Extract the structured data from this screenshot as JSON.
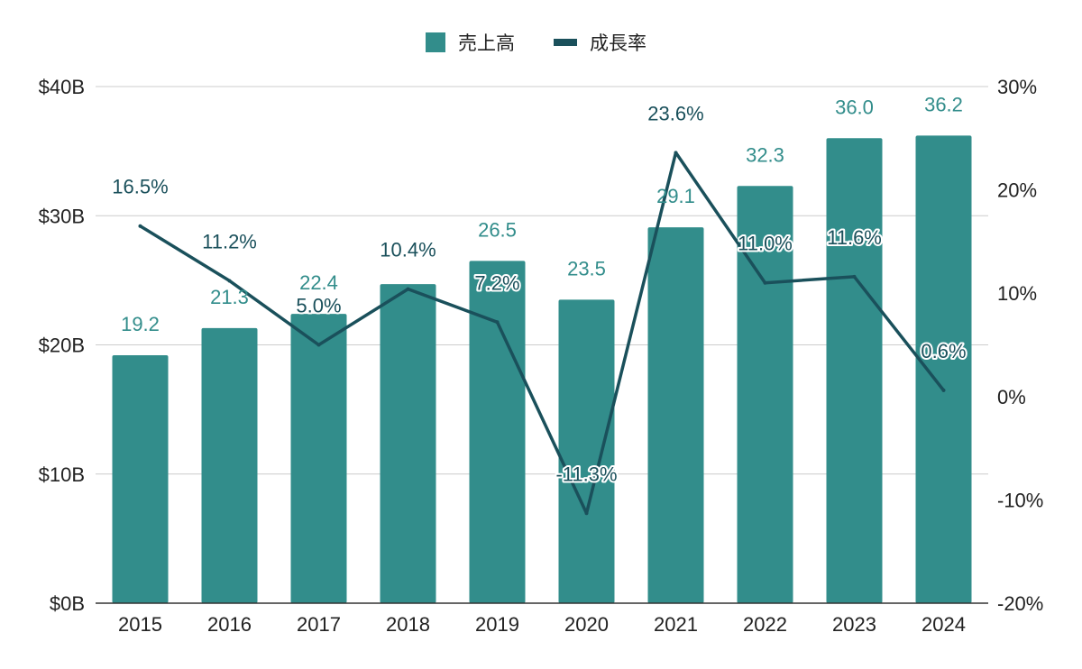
{
  "chart_data": {
    "type": "bar",
    "categories": [
      "2015",
      "2016",
      "2017",
      "2018",
      "2019",
      "2020",
      "2021",
      "2022",
      "2023",
      "2024"
    ],
    "series": [
      {
        "name": "売上高",
        "type": "bar",
        "axis": "left",
        "color": "#328d8b",
        "values": [
          19.2,
          21.3,
          22.4,
          24.7,
          26.5,
          23.5,
          29.1,
          32.3,
          36.0,
          36.2
        ],
        "labels": [
          "19.2",
          "21.3",
          "22.4",
          "",
          "26.5",
          "23.5",
          "29.1",
          "32.3",
          "36.0",
          "36.2"
        ]
      },
      {
        "name": "成長率",
        "type": "line",
        "axis": "right",
        "color": "#1a505b",
        "values": [
          16.5,
          11.2,
          5.0,
          10.4,
          7.2,
          -11.3,
          23.6,
          11.0,
          11.6,
          0.6
        ],
        "labels": [
          "16.5%",
          "11.2%",
          "5.0%",
          "10.4%",
          "7.2%",
          "-11.3%",
          "23.6%",
          "11.0%",
          "11.6%",
          "0.6%"
        ]
      }
    ],
    "y_left": {
      "min": 0,
      "max": 40,
      "step": 10,
      "tick_labels": [
        "$0B",
        "$10B",
        "$20B",
        "$30B",
        "$40B"
      ]
    },
    "y_right": {
      "min": -20,
      "max": 30,
      "step": 10,
      "tick_labels": [
        "-20%",
        "-10%",
        "0%",
        "10%",
        "20%",
        "30%"
      ]
    },
    "legend_position": "top-center",
    "grid": true,
    "gridline_color": "#cccccc",
    "label_color_bar": "#328d8b",
    "label_color_line": "#1a505b"
  }
}
